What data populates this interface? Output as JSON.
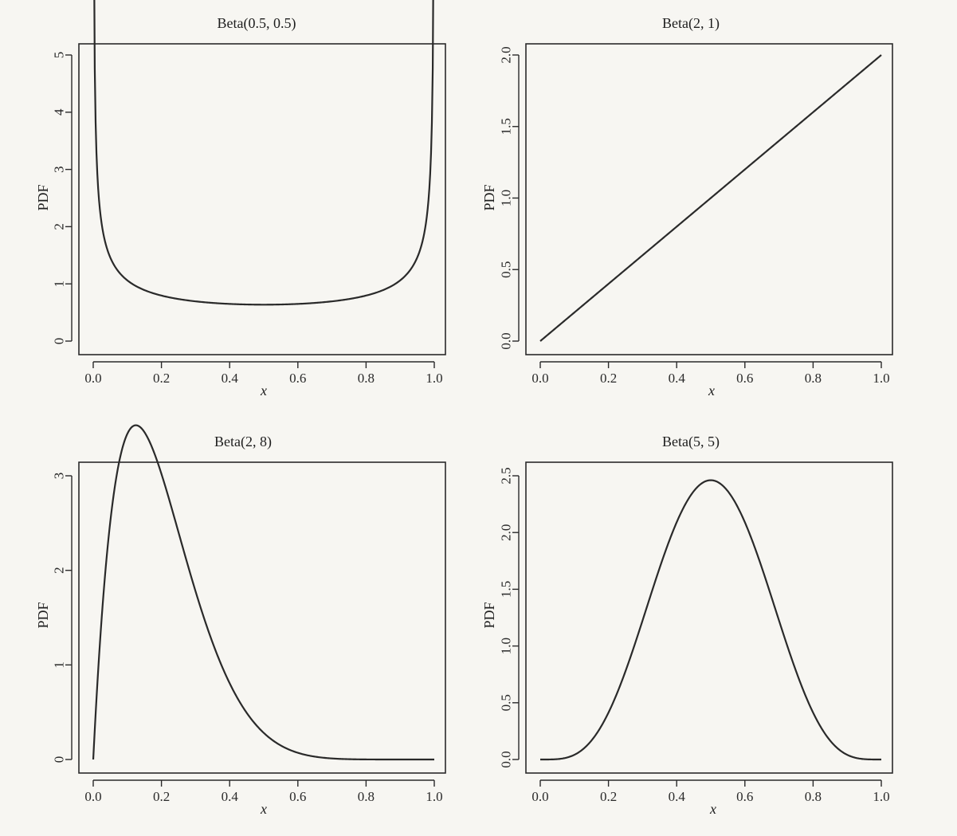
{
  "chart_data": [
    {
      "type": "line",
      "title": "Beta(0.5, 0.5)",
      "xlabel": "x",
      "ylabel": "PDF",
      "alpha": 0.5,
      "beta": 0.5,
      "xlim": [
        0,
        1
      ],
      "ylim": [
        0,
        5
      ],
      "xticks": [
        0,
        0.2,
        0.4,
        0.6,
        0.8,
        1.0
      ],
      "xtick_labels": [
        "0.0",
        "0.2",
        "0.4",
        "0.6",
        "0.8",
        "1.0"
      ],
      "yticks": [
        0,
        1,
        2,
        3,
        4,
        5
      ],
      "ytick_labels": [
        "0",
        "1",
        "2",
        "3",
        "4",
        "5"
      ],
      "x": [
        0.002,
        0.01,
        0.02,
        0.05,
        0.1,
        0.2,
        0.3,
        0.4,
        0.5,
        0.6,
        0.7,
        0.8,
        0.9,
        0.95,
        0.98,
        0.99,
        0.998
      ],
      "y": [
        4.5,
        3.2,
        2.27,
        1.46,
        1.06,
        0.8,
        0.69,
        0.65,
        0.64,
        0.65,
        0.69,
        0.8,
        1.06,
        1.46,
        2.27,
        3.2,
        4.5
      ]
    },
    {
      "type": "line",
      "title": "Beta(2, 1)",
      "xlabel": "x",
      "ylabel": "PDF",
      "alpha": 2,
      "beta": 1,
      "xlim": [
        0,
        1
      ],
      "ylim": [
        0,
        2
      ],
      "xticks": [
        0,
        0.2,
        0.4,
        0.6,
        0.8,
        1.0
      ],
      "xtick_labels": [
        "0.0",
        "0.2",
        "0.4",
        "0.6",
        "0.8",
        "1.0"
      ],
      "yticks": [
        0,
        0.5,
        1.0,
        1.5,
        2.0
      ],
      "ytick_labels": [
        "0.0",
        "0.5",
        "1.0",
        "1.5",
        "2.0"
      ],
      "x": [
        0,
        1
      ],
      "y": [
        0,
        2
      ]
    },
    {
      "type": "line",
      "title": "Beta(2, 8)",
      "xlabel": "x",
      "ylabel": "PDF",
      "alpha": 2,
      "beta": 8,
      "xlim": [
        0,
        1
      ],
      "ylim": [
        0,
        3.6
      ],
      "xticks": [
        0,
        0.2,
        0.4,
        0.6,
        0.8,
        1.0
      ],
      "xtick_labels": [
        "0.0",
        "0.2",
        "0.4",
        "0.6",
        "0.8",
        "1.0"
      ],
      "yticks": [
        0,
        1,
        2,
        3
      ],
      "ytick_labels": [
        "0",
        "1",
        "2",
        "3"
      ],
      "x": [
        0,
        0.05,
        0.1,
        0.143,
        0.2,
        0.3,
        0.4,
        0.5,
        0.6,
        0.7,
        0.8,
        1.0
      ],
      "y": [
        0,
        2.51,
        3.44,
        3.55,
        3.02,
        1.98,
        0.81,
        0.32,
        0.1,
        0.02,
        0.0,
        0
      ]
    },
    {
      "type": "line",
      "title": "Beta(5, 5)",
      "xlabel": "x",
      "ylabel": "PDF",
      "alpha": 5,
      "beta": 5,
      "xlim": [
        0,
        1
      ],
      "ylim": [
        0,
        2.5
      ],
      "xticks": [
        0,
        0.2,
        0.4,
        0.6,
        0.8,
        1.0
      ],
      "xtick_labels": [
        "0.0",
        "0.2",
        "0.4",
        "0.6",
        "0.8",
        "1.0"
      ],
      "yticks": [
        0,
        0.5,
        1.0,
        1.5,
        2.0,
        2.5
      ],
      "ytick_labels": [
        "0.0",
        "0.5",
        "1.0",
        "1.5",
        "2.0",
        "2.5"
      ],
      "x": [
        0,
        0.1,
        0.2,
        0.3,
        0.4,
        0.5,
        0.6,
        0.7,
        0.8,
        0.9,
        1.0
      ],
      "y": [
        0,
        0.08,
        0.53,
        1.37,
        2.09,
        2.46,
        2.09,
        1.37,
        0.53,
        0.08,
        0
      ]
    }
  ]
}
